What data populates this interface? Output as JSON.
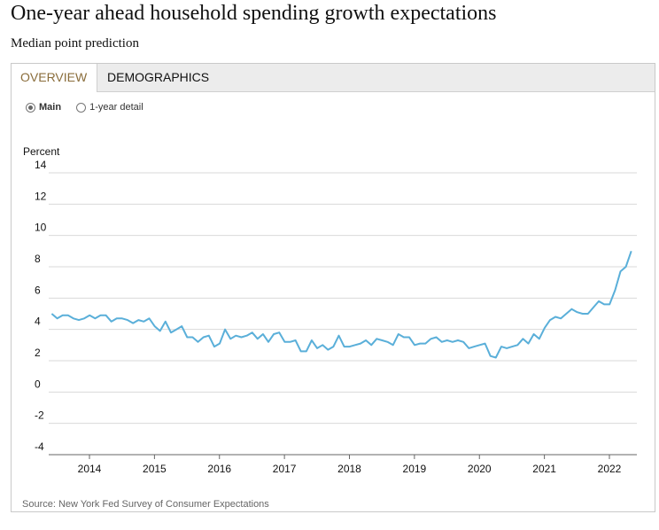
{
  "header": {
    "title": "One-year ahead household spending growth expectations",
    "subtitle": "Median point prediction"
  },
  "tabs": [
    {
      "label": "OVERVIEW",
      "active": true
    },
    {
      "label": "DEMOGRAPHICS",
      "active": false
    }
  ],
  "view_options": [
    {
      "label": "Main",
      "checked": true
    },
    {
      "label": "1-year detail",
      "checked": false
    }
  ],
  "source": "Source: New York Fed Survey of Consumer Expectations",
  "colors": {
    "line": "#5aafd9",
    "grid": "#d9d9d9",
    "active_tab_text": "#8a6d3b"
  },
  "chart_data": {
    "type": "line",
    "title": "One-year ahead household spending growth expectations",
    "subtitle": "Median point prediction",
    "ylabel": "Percent",
    "xlabel": "",
    "ylim": [
      -4,
      14
    ],
    "yticks": [
      14,
      12,
      10,
      8,
      6,
      4,
      2,
      0,
      -2,
      -4
    ],
    "xticks": [
      2014,
      2015,
      2016,
      2017,
      2018,
      2019,
      2020,
      2021,
      2022
    ],
    "grid": "horizontal",
    "legend": "none",
    "series": [
      {
        "x_start": 2013.42,
        "x_step_months": 1,
        "values": [
          5.0,
          4.7,
          4.9,
          4.9,
          4.7,
          4.6,
          4.7,
          4.9,
          4.7,
          4.9,
          4.9,
          4.5,
          4.7,
          4.7,
          4.6,
          4.4,
          4.6,
          4.5,
          4.7,
          4.2,
          3.9,
          4.5,
          3.8,
          4.0,
          4.2,
          3.5,
          3.5,
          3.2,
          3.5,
          3.6,
          2.9,
          3.1,
          4.0,
          3.4,
          3.6,
          3.5,
          3.6,
          3.8,
          3.4,
          3.7,
          3.2,
          3.7,
          3.8,
          3.2,
          3.2,
          3.3,
          2.6,
          2.6,
          3.3,
          2.8,
          3.0,
          2.7,
          2.9,
          3.6,
          2.9,
          2.9,
          3.0,
          3.1,
          3.3,
          3.0,
          3.4,
          3.3,
          3.2,
          3.0,
          3.7,
          3.5,
          3.5,
          3.0,
          3.1,
          3.1,
          3.4,
          3.5,
          3.2,
          3.3,
          3.2,
          3.3,
          3.2,
          2.8,
          2.9,
          3.0,
          3.1,
          2.3,
          2.2,
          2.9,
          2.8,
          2.9,
          3.0,
          3.4,
          3.1,
          3.7,
          3.4,
          4.1,
          4.6,
          4.8,
          4.7,
          5.0,
          5.3,
          5.1,
          5.0,
          5.0,
          5.4,
          5.8,
          5.6,
          5.6,
          6.5,
          7.7,
          8.0,
          9.0
        ]
      }
    ]
  }
}
